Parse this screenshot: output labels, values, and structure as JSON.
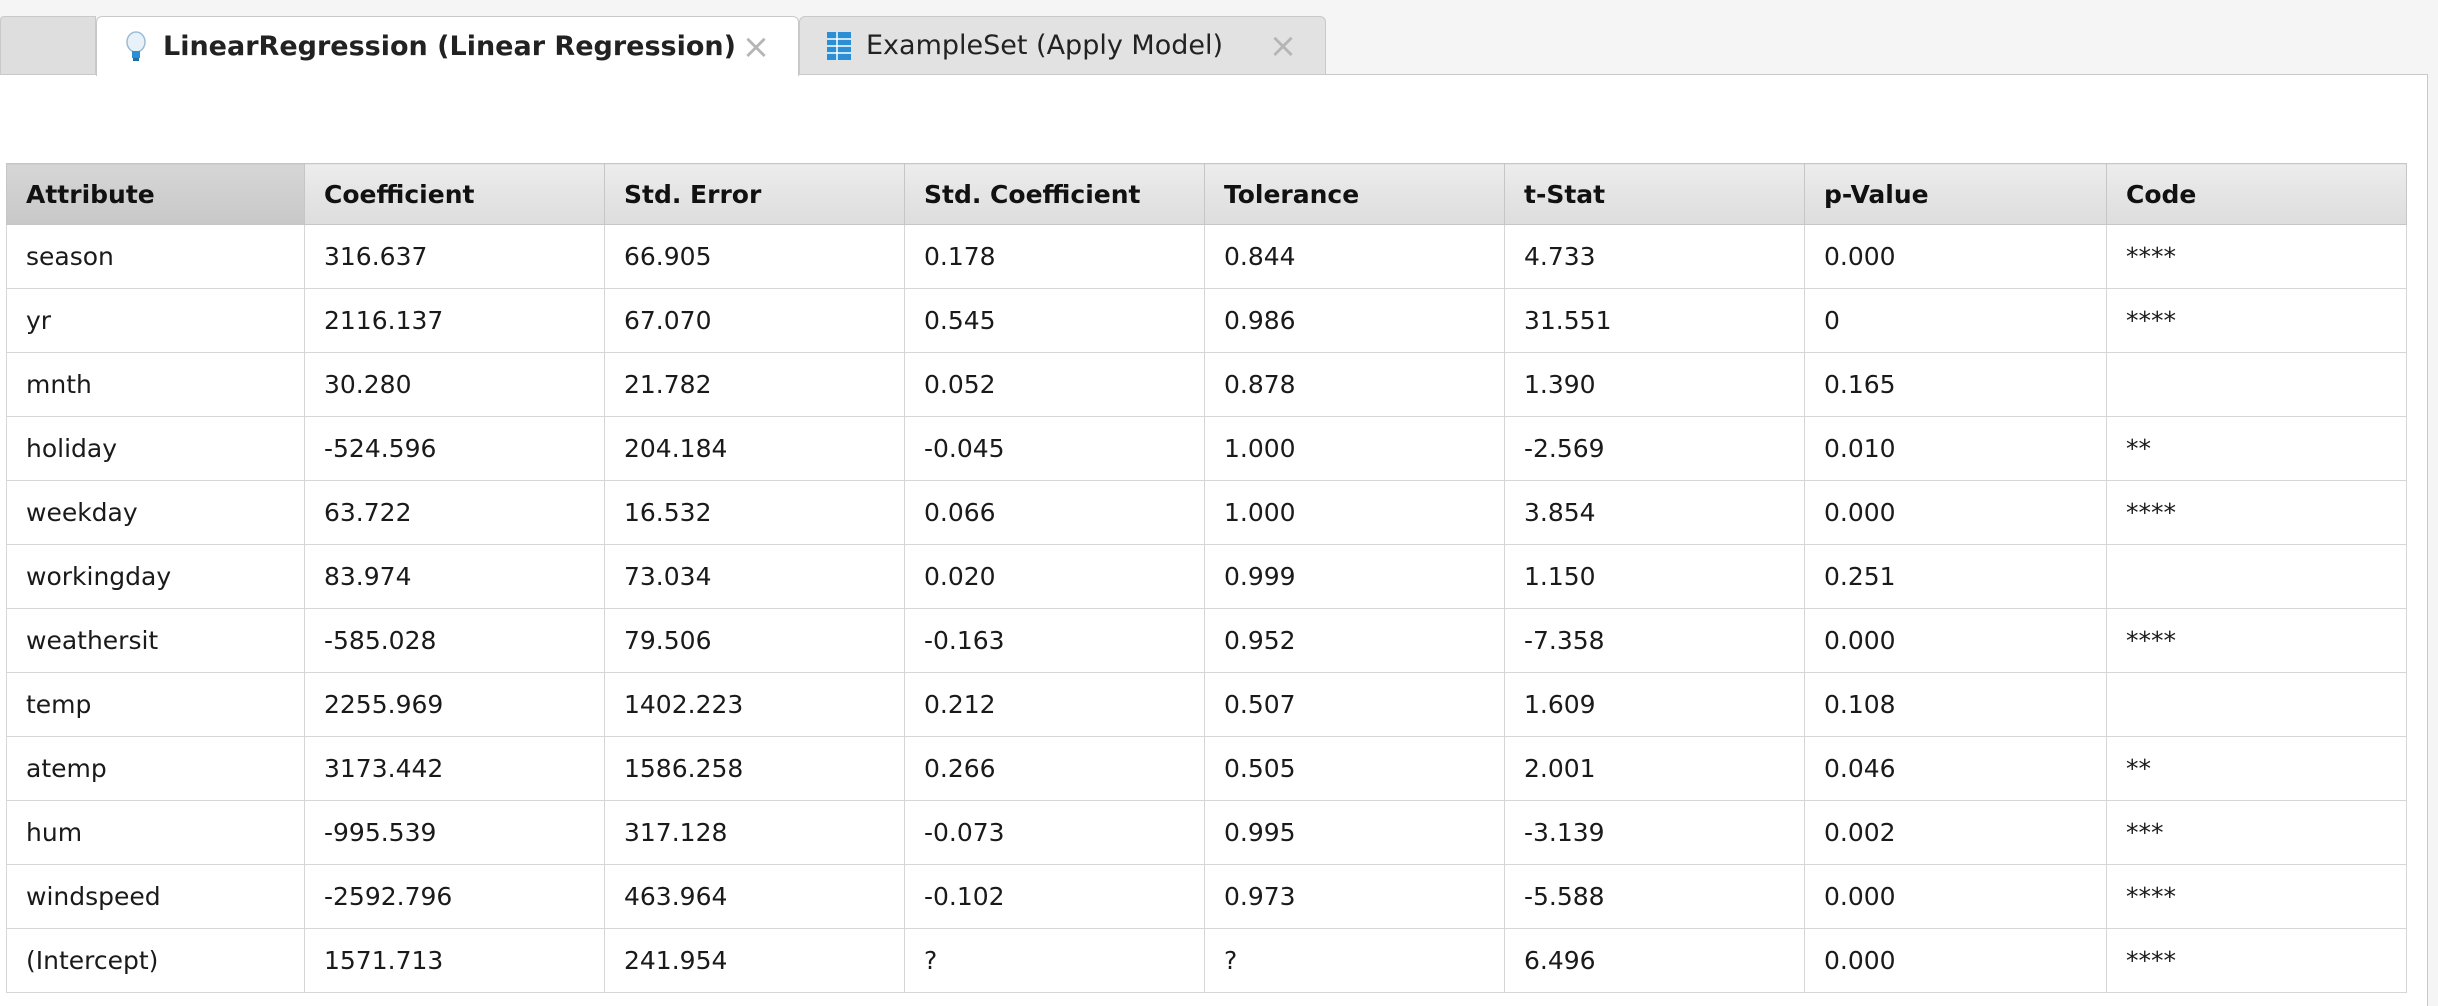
{
  "tabs": [
    {
      "label": "LinearRegression (Linear Regression)",
      "icon": "lightbulb-icon",
      "active": true
    },
    {
      "label": "ExampleSet (Apply Model)",
      "icon": "table-icon",
      "active": false
    }
  ],
  "close_glyph": "×",
  "table": {
    "headers": [
      "Attribute",
      "Coefficient",
      "Std. Error",
      "Std. Coefficient",
      "Tolerance",
      "t-Stat",
      "p-Value",
      "Code"
    ],
    "rows": [
      [
        "season",
        "316.637",
        "66.905",
        "0.178",
        "0.844",
        "4.733",
        "0.000",
        "****"
      ],
      [
        "yr",
        "2116.137",
        "67.070",
        "0.545",
        "0.986",
        "31.551",
        "0",
        "****"
      ],
      [
        "mnth",
        "30.280",
        "21.782",
        "0.052",
        "0.878",
        "1.390",
        "0.165",
        ""
      ],
      [
        "holiday",
        "-524.596",
        "204.184",
        "-0.045",
        "1.000",
        "-2.569",
        "0.010",
        "**"
      ],
      [
        "weekday",
        "63.722",
        "16.532",
        "0.066",
        "1.000",
        "3.854",
        "0.000",
        "****"
      ],
      [
        "workingday",
        "83.974",
        "73.034",
        "0.020",
        "0.999",
        "1.150",
        "0.251",
        ""
      ],
      [
        "weathersit",
        "-585.028",
        "79.506",
        "-0.163",
        "0.952",
        "-7.358",
        "0.000",
        "****"
      ],
      [
        "temp",
        "2255.969",
        "1402.223",
        "0.212",
        "0.507",
        "1.609",
        "0.108",
        ""
      ],
      [
        "atemp",
        "3173.442",
        "1586.258",
        "0.266",
        "0.505",
        "2.001",
        "0.046",
        "**"
      ],
      [
        "hum",
        "-995.539",
        "317.128",
        "-0.073",
        "0.995",
        "-3.139",
        "0.002",
        "***"
      ],
      [
        "windspeed",
        "-2592.796",
        "463.964",
        "-0.102",
        "0.973",
        "-5.588",
        "0.000",
        "****"
      ],
      [
        "(Intercept)",
        "1571.713",
        "241.954",
        "?",
        "?",
        "6.496",
        "0.000",
        "****"
      ]
    ]
  },
  "colors": {
    "accent_blue": "#2a8fd6"
  }
}
